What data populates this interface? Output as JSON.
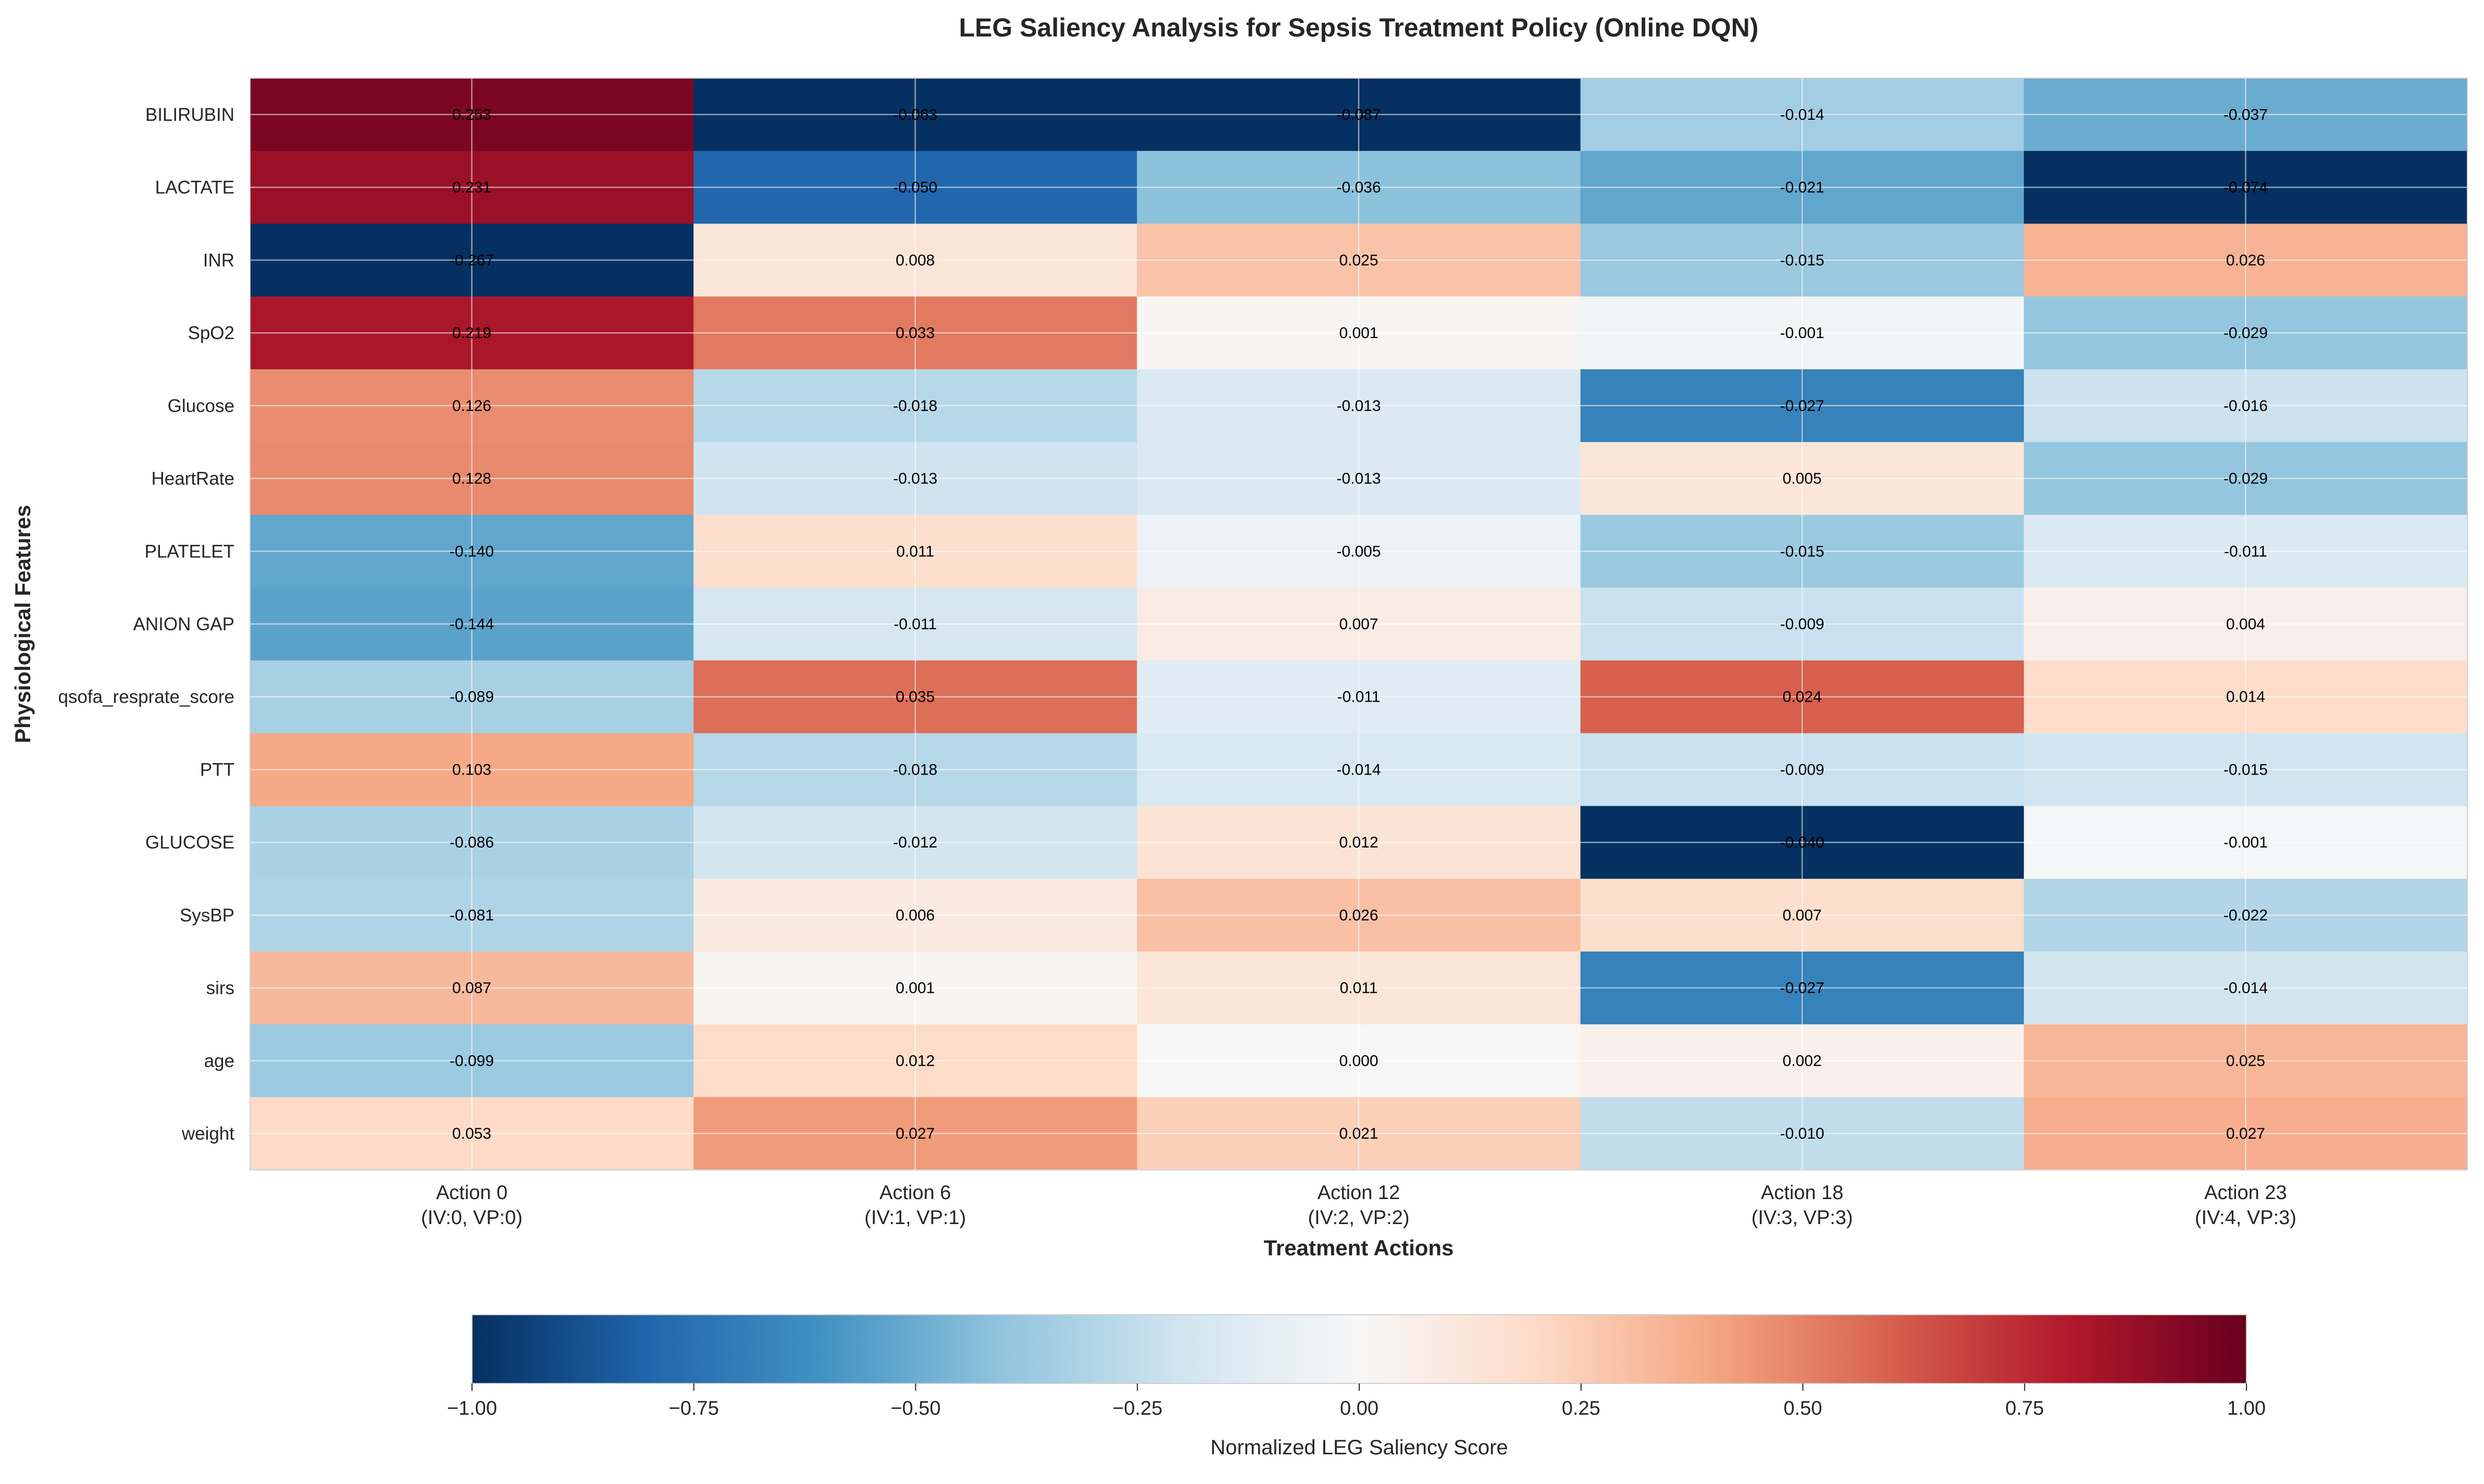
{
  "chart_data": {
    "type": "heatmap",
    "title": "LEG Saliency Analysis for Sepsis Treatment Policy (Online DQN)",
    "xlabel": "Treatment Actions",
    "ylabel": "Physiological Features",
    "x_categories": [
      {
        "line1": "Action 0",
        "line2": "(IV:0, VP:0)"
      },
      {
        "line1": "Action 6",
        "line2": "(IV:1, VP:1)"
      },
      {
        "line1": "Action 12",
        "line2": "(IV:2, VP:2)"
      },
      {
        "line1": "Action 18",
        "line2": "(IV:3, VP:3)"
      },
      {
        "line1": "Action 23",
        "line2": "(IV:4, VP:3)"
      }
    ],
    "y_categories": [
      "BILIRUBIN",
      "LACTATE",
      "INR",
      "SpO2",
      "Glucose",
      "HeartRate",
      "PLATELET",
      "ANION GAP",
      "qsofa_resprate_score",
      "PTT",
      "GLUCOSE",
      "SysBP",
      "sirs",
      "age",
      "weight"
    ],
    "values": [
      [
        0.253,
        -0.063,
        -0.087,
        -0.014,
        -0.037
      ],
      [
        0.231,
        -0.05,
        -0.036,
        -0.021,
        -0.074
      ],
      [
        -0.267,
        0.008,
        0.025,
        -0.015,
        0.026
      ],
      [
        0.219,
        0.033,
        0.001,
        -0.001,
        -0.029
      ],
      [
        0.126,
        -0.018,
        -0.013,
        -0.027,
        -0.016
      ],
      [
        0.128,
        -0.013,
        -0.013,
        0.005,
        -0.029
      ],
      [
        -0.14,
        0.011,
        -0.005,
        -0.015,
        -0.011
      ],
      [
        -0.144,
        -0.011,
        0.007,
        -0.009,
        0.004
      ],
      [
        -0.089,
        0.035,
        -0.011,
        0.024,
        0.014
      ],
      [
        0.103,
        -0.018,
        -0.014,
        -0.009,
        -0.015
      ],
      [
        -0.086,
        -0.012,
        0.012,
        -0.04,
        -0.001
      ],
      [
        -0.081,
        0.006,
        0.026,
        0.007,
        -0.022
      ],
      [
        0.087,
        0.001,
        0.011,
        -0.027,
        -0.014
      ],
      [
        -0.099,
        0.012,
        0.0,
        0.002,
        0.025
      ],
      [
        0.053,
        0.027,
        0.021,
        -0.01,
        0.027
      ]
    ],
    "color_scale": {
      "colormap": "RdBu_r",
      "range": [
        -1.0,
        1.0
      ],
      "column_normalized": true,
      "label": "Normalized LEG Saliency Score",
      "ticks": [
        "−1.00",
        "−0.75",
        "−0.50",
        "−0.25",
        "0.00",
        "0.25",
        "0.50",
        "0.75",
        "1.00"
      ],
      "tick_values": [
        -1.0,
        -0.75,
        -0.5,
        -0.25,
        0.0,
        0.25,
        0.5,
        0.75,
        1.0
      ]
    },
    "grid": true,
    "colorbar_placement": "bottom"
  }
}
